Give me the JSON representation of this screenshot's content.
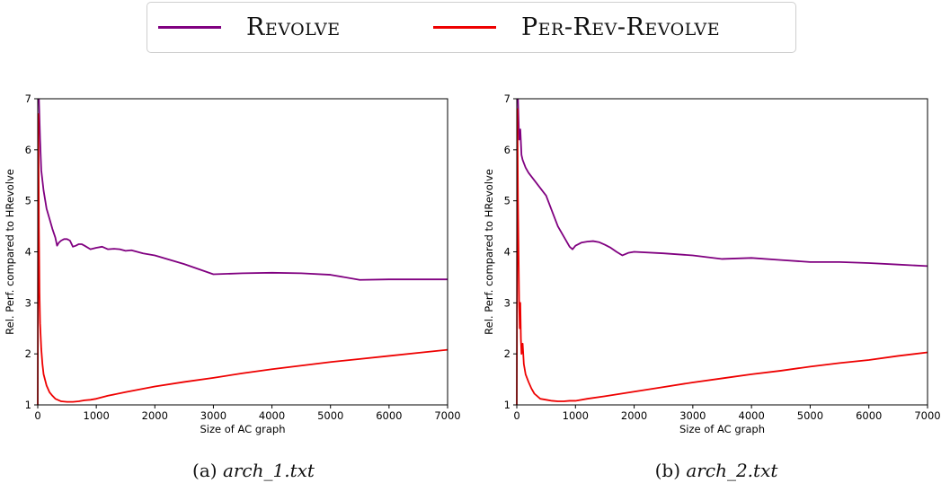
{
  "legend": {
    "items": [
      {
        "label": "Revolve",
        "color": "#800080"
      },
      {
        "label": "Per-Rev-Revolve",
        "color": "#ee0000"
      }
    ]
  },
  "chart_data": [
    {
      "type": "line",
      "caption_tag": "(a)",
      "caption_file": "arch_1.txt",
      "xlabel": "Size of AC graph",
      "ylabel": "Rel. Perf. compared to HRevolve",
      "xlim": [
        0,
        7000
      ],
      "ylim": [
        1,
        7
      ],
      "xticks": [
        0,
        1000,
        2000,
        3000,
        4000,
        5000,
        6000,
        7000
      ],
      "yticks": [
        1,
        2,
        3,
        4,
        5,
        6,
        7
      ],
      "grid": false,
      "series": [
        {
          "name": "Revolve",
          "color": "#800080",
          "x": [
            20,
            40,
            60,
            100,
            150,
            200,
            250,
            300,
            330,
            360,
            400,
            450,
            500,
            550,
            600,
            650,
            700,
            750,
            800,
            900,
            1000,
            1100,
            1200,
            1300,
            1400,
            1500,
            1600,
            1700,
            1800,
            2000,
            2500,
            3000,
            3500,
            4000,
            4500,
            5000,
            5500,
            6000,
            6500,
            7000
          ],
          "y": [
            7.0,
            6.2,
            5.6,
            5.2,
            4.85,
            4.65,
            4.45,
            4.28,
            4.12,
            4.18,
            4.22,
            4.25,
            4.25,
            4.22,
            4.1,
            4.12,
            4.15,
            4.15,
            4.12,
            4.05,
            4.08,
            4.1,
            4.05,
            4.06,
            4.05,
            4.02,
            4.03,
            4.0,
            3.97,
            3.93,
            3.76,
            3.56,
            3.58,
            3.59,
            3.58,
            3.55,
            3.45,
            3.46,
            3.46,
            3.46
          ]
        },
        {
          "name": "Per-Rev-Revolve",
          "color": "#ee0000",
          "x": [
            0,
            10,
            20,
            30,
            40,
            60,
            80,
            100,
            150,
            200,
            250,
            300,
            400,
            500,
            600,
            700,
            800,
            900,
            1000,
            1200,
            1500,
            2000,
            2500,
            3000,
            3500,
            4000,
            4500,
            5000,
            5500,
            6000,
            6500,
            7000
          ],
          "y": [
            1.0,
            6.7,
            4.5,
            3.2,
            2.6,
            2.1,
            1.8,
            1.6,
            1.38,
            1.25,
            1.18,
            1.12,
            1.07,
            1.06,
            1.06,
            1.07,
            1.09,
            1.1,
            1.12,
            1.18,
            1.25,
            1.36,
            1.45,
            1.53,
            1.62,
            1.7,
            1.77,
            1.84,
            1.9,
            1.96,
            2.02,
            2.08
          ]
        }
      ]
    },
    {
      "type": "line",
      "caption_tag": "(b)",
      "caption_file": "arch_2.txt",
      "xlabel": "Size of AC graph",
      "ylabel": "Rel. Perf. compared to HRevolve",
      "xlim": [
        0,
        7000
      ],
      "ylim": [
        1,
        7
      ],
      "xticks": [
        0,
        1000,
        2000,
        3000,
        4000,
        5000,
        6000,
        7000
      ],
      "yticks": [
        1,
        2,
        3,
        4,
        5,
        6,
        7
      ],
      "grid": false,
      "series": [
        {
          "name": "Revolve",
          "color": "#800080",
          "x": [
            20,
            40,
            60,
            80,
            100,
            150,
            200,
            300,
            400,
            500,
            600,
            700,
            800,
            900,
            950,
            1000,
            1100,
            1200,
            1300,
            1400,
            1500,
            1600,
            1700,
            1800,
            1900,
            2000,
            2500,
            3000,
            3500,
            4000,
            4500,
            5000,
            5500,
            6000,
            6500,
            7000
          ],
          "y": [
            7.0,
            6.2,
            6.4,
            5.9,
            5.8,
            5.65,
            5.55,
            5.4,
            5.25,
            5.1,
            4.8,
            4.5,
            4.3,
            4.1,
            4.05,
            4.12,
            4.18,
            4.2,
            4.21,
            4.19,
            4.14,
            4.08,
            4.0,
            3.93,
            3.98,
            4.0,
            3.97,
            3.93,
            3.86,
            3.88,
            3.84,
            3.8,
            3.8,
            3.78,
            3.75,
            3.72
          ]
        },
        {
          "name": "Per-Rev-Revolve",
          "color": "#ee0000",
          "x": [
            0,
            10,
            20,
            30,
            40,
            50,
            60,
            70,
            80,
            100,
            120,
            150,
            200,
            250,
            300,
            400,
            500,
            600,
            700,
            800,
            900,
            1000,
            1200,
            1500,
            2000,
            2500,
            3000,
            3500,
            4000,
            4500,
            5000,
            5500,
            6000,
            6500,
            7000
          ],
          "y": [
            1.0,
            6.8,
            5.0,
            4.0,
            3.0,
            2.5,
            3.0,
            2.3,
            2.0,
            2.2,
            1.8,
            1.6,
            1.45,
            1.32,
            1.22,
            1.12,
            1.1,
            1.08,
            1.07,
            1.07,
            1.08,
            1.08,
            1.12,
            1.17,
            1.26,
            1.35,
            1.44,
            1.52,
            1.6,
            1.67,
            1.75,
            1.82,
            1.88,
            1.96,
            2.03
          ]
        }
      ]
    }
  ]
}
